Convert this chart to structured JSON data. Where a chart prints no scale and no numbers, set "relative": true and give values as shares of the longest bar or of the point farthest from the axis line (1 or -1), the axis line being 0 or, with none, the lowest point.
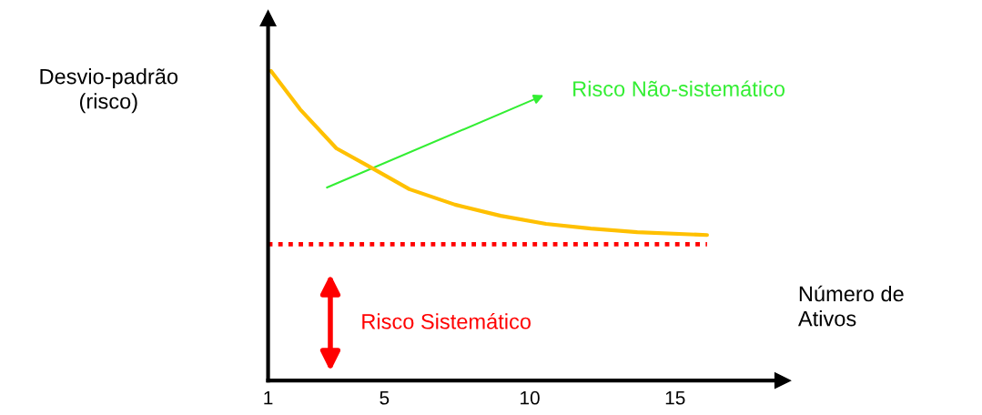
{
  "chart_data": {
    "type": "line",
    "relative": true,
    "xlabel": "Número de\nAtivos",
    "ylabel": "Desvio-padrão\n(risco)",
    "x": [
      1.1,
      2.1,
      3.35,
      4.6,
      5.86,
      7.43,
      9.0,
      10.56,
      12.1,
      13.7,
      16.1
    ],
    "series": [
      {
        "color": "#ffc000",
        "values": [
          1.0,
          0.876,
          0.75,
          0.685,
          0.618,
          0.568,
          0.532,
          0.506,
          0.491,
          0.479,
          0.47
        ]
      }
    ],
    "xlim": [
      1,
      18.7
    ],
    "xticks": [
      1,
      5,
      10,
      15
    ],
    "ref_lines": [
      {
        "axis": "y",
        "value": 0.44,
        "label": "Risco Sistemático",
        "color": "#ff0000",
        "line_style": "dotted"
      }
    ],
    "annotations": [
      "Risco Não-sistemático"
    ],
    "grid": false,
    "legend": false,
    "marker": "none",
    "line_style": "solid"
  }
}
